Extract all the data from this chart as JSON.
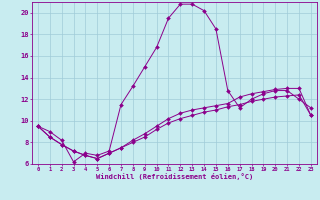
{
  "xlabel": "Windchill (Refroidissement éolien,°C)",
  "background_color": "#c8ecf0",
  "grid_color": "#a0ccd8",
  "line_color": "#8b008b",
  "xlim": [
    -0.5,
    23.5
  ],
  "ylim": [
    6,
    21
  ],
  "yticks": [
    6,
    8,
    10,
    12,
    14,
    16,
    18,
    20
  ],
  "xticks": [
    0,
    1,
    2,
    3,
    4,
    5,
    6,
    7,
    8,
    9,
    10,
    11,
    12,
    13,
    14,
    15,
    16,
    17,
    18,
    19,
    20,
    21,
    22,
    23
  ],
  "hours": [
    0,
    1,
    2,
    3,
    4,
    5,
    6,
    7,
    8,
    9,
    10,
    11,
    12,
    13,
    14,
    15,
    16,
    17,
    18,
    19,
    20,
    21,
    22,
    23
  ],
  "curve1": [
    9.5,
    9.0,
    8.2,
    6.2,
    7.0,
    6.8,
    7.2,
    11.5,
    13.2,
    15.0,
    16.8,
    19.5,
    20.8,
    20.8,
    20.2,
    18.5,
    12.8,
    11.2,
    12.0,
    12.5,
    12.8,
    12.8,
    12.0,
    11.2
  ],
  "curve2": [
    9.5,
    8.5,
    7.8,
    7.2,
    6.8,
    6.5,
    7.0,
    7.5,
    8.0,
    8.5,
    9.2,
    9.8,
    10.2,
    10.5,
    10.8,
    11.0,
    11.3,
    11.5,
    11.8,
    12.0,
    12.2,
    12.3,
    12.4,
    10.5
  ],
  "curve3": [
    9.5,
    8.5,
    7.8,
    7.2,
    6.8,
    6.5,
    7.0,
    7.5,
    8.2,
    8.8,
    9.5,
    10.2,
    10.7,
    11.0,
    11.2,
    11.4,
    11.6,
    12.2,
    12.5,
    12.7,
    12.9,
    13.0,
    13.0,
    10.5
  ]
}
